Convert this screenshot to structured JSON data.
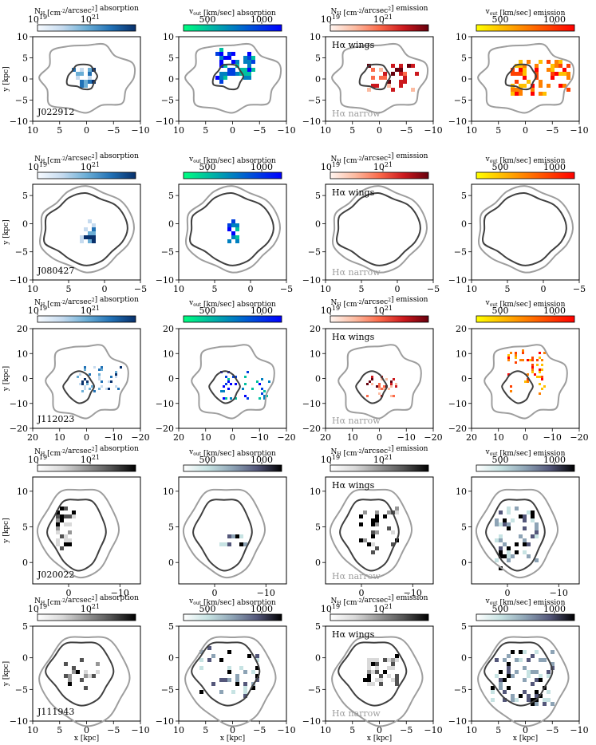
{
  "figure": {
    "xlabel": "x [kpc]",
    "ylabel": "y [kpc]",
    "wings_label": "Hα wings",
    "narrow_label": "Hα narrow"
  },
  "colorbars": {
    "nh_absorption": {
      "title": "N_H [cm^-2/arcsec^2] absorption",
      "ticks": [
        "10^19",
        "10^21"
      ]
    },
    "v_absorption": {
      "title": "v_out [km/sec] absorption",
      "ticks": [
        "500",
        "1000"
      ]
    },
    "nh_emission": {
      "title": "N_H [cm^-2/arcsec^2] emission",
      "ticks": [
        "10^19",
        "10^21"
      ]
    },
    "v_emission": {
      "title": "v_out [km/sec] emission",
      "ticks": [
        "500",
        "1000"
      ]
    }
  },
  "colors": {
    "blues": [
      "#f7fbff",
      "#c6dbef",
      "#6baed6",
      "#2171b5",
      "#08306b"
    ],
    "winter": [
      "#00ff80",
      "#00c0a0",
      "#0080c0",
      "#0040e0",
      "#0000ff"
    ],
    "reds": [
      "#fff5f0",
      "#fcbba1",
      "#fb6a4a",
      "#cb181d",
      "#67000d"
    ],
    "autumn": [
      "#ffff00",
      "#ffc000",
      "#ff8000",
      "#ff4000",
      "#ff0000"
    ],
    "greys": [
      "#ffffff",
      "#d9d9d9",
      "#969696",
      "#525252",
      "#000000"
    ],
    "bone": [
      "#ffffff",
      "#c7e3e3",
      "#8da3b5",
      "#54577a",
      "#000000"
    ],
    "contour_outer": "#9e9e9e",
    "contour_inner": "#404040"
  },
  "chart_data": [
    {
      "type": "heatmap",
      "galaxy": "J022912",
      "xlim": [
        10,
        -10
      ],
      "ylim": [
        -10,
        10
      ],
      "xticks": [
        10,
        5,
        0,
        -5,
        -10
      ],
      "yticks": [
        -10,
        -5,
        0,
        5,
        10
      ],
      "ytick_labels": [
        "−10",
        "−5",
        "0",
        "5",
        "10"
      ],
      "xtick_labels": [
        "10",
        "5",
        "0",
        "−5",
        "−10"
      ]
    },
    {
      "type": "heatmap",
      "galaxy": "J080427",
      "xlim": [
        10,
        -5
      ],
      "ylim": [
        -10,
        7
      ],
      "xticks": [
        10,
        5,
        0,
        -5
      ],
      "yticks": [
        -10,
        -5,
        0,
        5
      ],
      "ytick_labels": [
        "−10",
        "−5",
        "0",
        "5"
      ],
      "xtick_labels": [
        "10",
        "5",
        "0",
        "−5"
      ]
    },
    {
      "type": "heatmap",
      "galaxy": "J112023",
      "xlim": [
        20,
        -20
      ],
      "ylim": [
        -20,
        20
      ],
      "xticks": [
        20,
        10,
        0,
        -10,
        -20
      ],
      "yticks": [
        -20,
        -10,
        0,
        10,
        20
      ],
      "ytick_labels": [
        "−20",
        "−10",
        "0",
        "10",
        "20"
      ],
      "xtick_labels": [
        "20",
        "10",
        "0",
        "−10",
        "−20"
      ]
    },
    {
      "type": "heatmap",
      "galaxy": "J020022",
      "xlim": [
        7,
        -14
      ],
      "ylim": [
        -3,
        12
      ],
      "xticks": [
        0,
        -10
      ],
      "yticks": [
        0,
        5,
        10
      ],
      "ytick_labels": [
        "0",
        "5",
        "10"
      ],
      "xtick_labels": [
        "0",
        "−10"
      ]
    },
    {
      "type": "heatmap",
      "galaxy": "J111943",
      "xlim": [
        10,
        -10
      ],
      "ylim": [
        -10,
        5
      ],
      "xticks": [
        10,
        5,
        0,
        -5,
        -10
      ],
      "yticks": [
        -10,
        -5,
        0,
        5
      ],
      "ytick_labels": [
        "−10",
        "−5",
        "0",
        "5"
      ],
      "xtick_labels": [
        "10",
        "5",
        "0",
        "−5",
        "−10"
      ]
    }
  ]
}
